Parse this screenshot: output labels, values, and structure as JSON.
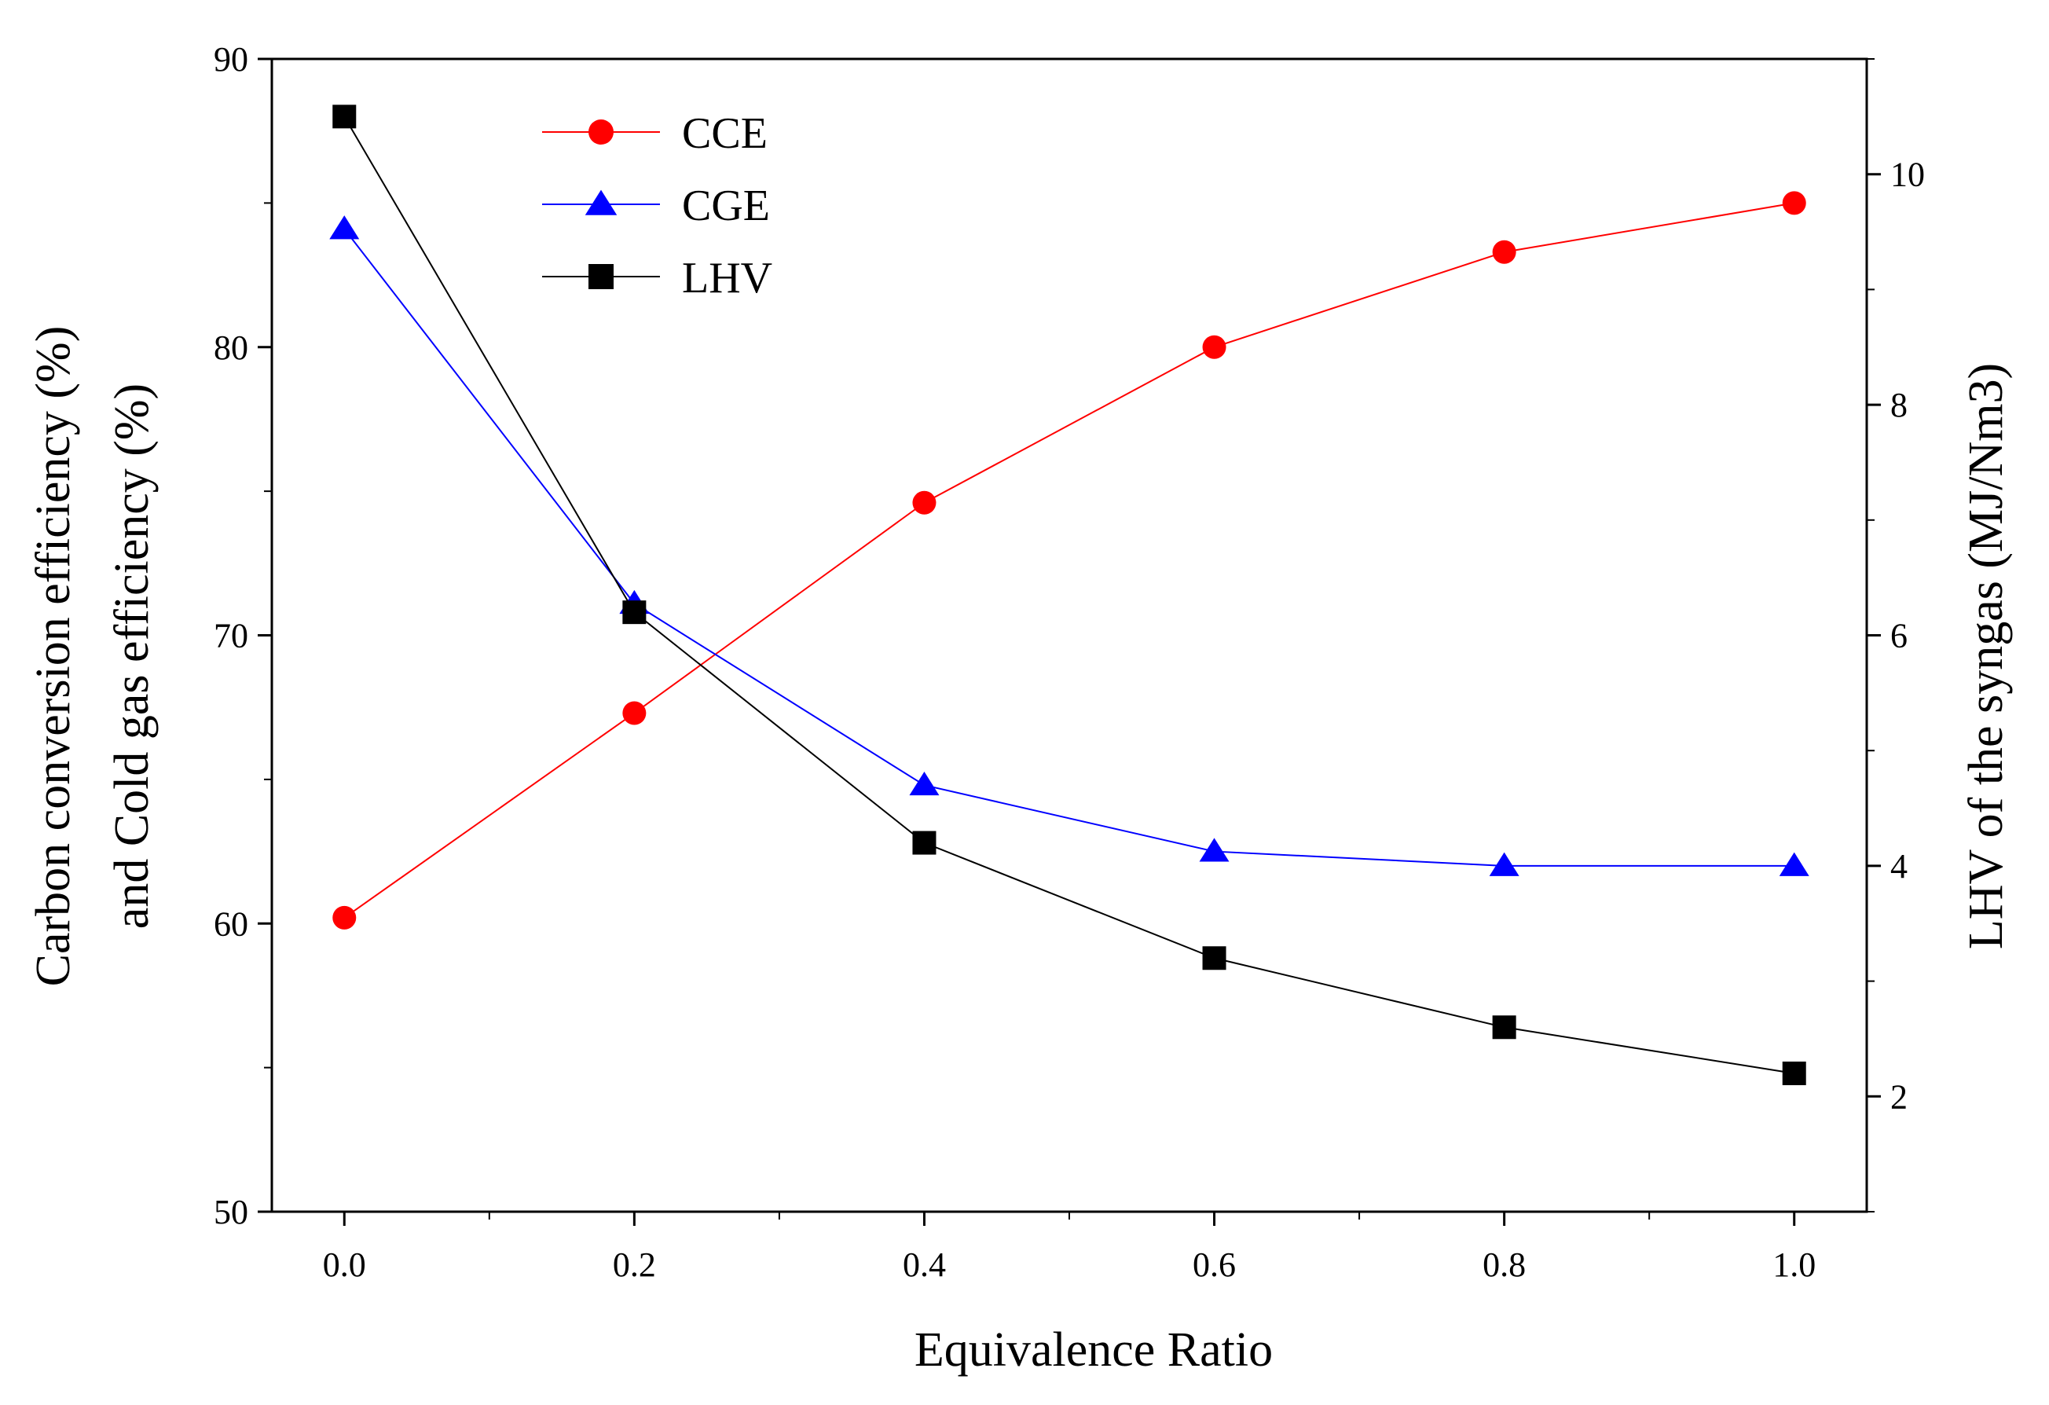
{
  "chart_data": {
    "type": "line",
    "title": "",
    "xlabel": "Equivalence Ratio",
    "ylabel_left_line1": "Carbon conversion efficiency (%)",
    "ylabel_left_line2": "and Cold gas efficiency (%)",
    "ylabel_right": "LHV of the syngas (MJ/Nm3)",
    "x": [
      0.0,
      0.2,
      0.4,
      0.6,
      0.8,
      1.0
    ],
    "xlim": [
      -0.05,
      1.05
    ],
    "xticks": [
      "0.0",
      "0.2",
      "0.4",
      "0.6",
      "0.8",
      "1.0"
    ],
    "ylim_left": [
      50,
      90
    ],
    "yticks_left": [
      "50",
      "60",
      "70",
      "80",
      "90"
    ],
    "ylim_right": [
      1,
      11
    ],
    "yticks_right": [
      "2",
      "4",
      "6",
      "8",
      "10"
    ],
    "grid": false,
    "legend_position": "top-left",
    "series": [
      {
        "name": "CCE",
        "axis": "left",
        "marker": "circle",
        "color": "#ff0000",
        "values": [
          60.2,
          67.3,
          74.6,
          80.0,
          83.3,
          85.0
        ]
      },
      {
        "name": "CGE",
        "axis": "left",
        "marker": "triangle",
        "color": "#0000ff",
        "values": [
          84.1,
          71.1,
          64.8,
          62.5,
          62.0,
          62.0
        ]
      },
      {
        "name": "LHV",
        "axis": "right",
        "marker": "square",
        "color": "#000000",
        "values": [
          10.5,
          6.2,
          4.2,
          3.2,
          2.6,
          2.2
        ]
      }
    ]
  }
}
